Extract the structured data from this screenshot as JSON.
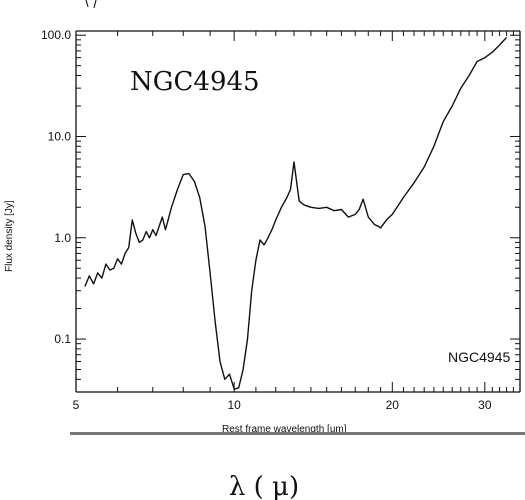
{
  "chart_data": {
    "type": "line",
    "title": "NGC4945",
    "inset_label": "NGC4945",
    "xlabel": "Rest frame wavelength [um]",
    "ylabel": "Flux density [Jy]",
    "caption": "λ ( μ)",
    "x_scale": "log",
    "y_scale": "log",
    "xlim": [
      5,
      35
    ],
    "ylim": [
      0.03,
      110
    ],
    "x_ticks": [
      5,
      10,
      20,
      30
    ],
    "x_tick_labels": [
      "5",
      "10",
      "20",
      "30"
    ],
    "y_ticks": [
      0.1,
      1,
      10,
      100
    ],
    "y_tick_labels": [
      "0.1",
      "1.0",
      "10.0",
      "100.0"
    ],
    "grid": false,
    "series": [
      {
        "x": [
          5.2,
          5.3,
          5.4,
          5.5,
          5.6,
          5.7,
          5.8,
          5.9,
          6.0,
          6.1,
          6.2,
          6.3,
          6.4,
          6.5,
          6.6,
          6.7,
          6.8,
          6.9,
          7.0,
          7.1,
          7.2,
          7.3,
          7.4,
          7.6,
          7.8,
          8.0,
          8.2,
          8.4,
          8.6,
          8.8,
          9.0,
          9.2,
          9.4,
          9.6,
          9.8,
          10.0,
          10.2,
          10.4,
          10.6,
          10.8,
          11.0,
          11.2,
          11.4,
          11.6,
          11.8,
          12.0,
          12.3,
          12.6,
          12.8,
          13.0,
          13.3,
          13.6,
          14.0,
          14.5,
          15.0,
          15.5,
          16.0,
          16.5,
          17.0,
          17.3,
          17.6,
          18.0,
          18.5,
          18.8,
          19.0,
          19.5,
          20.0,
          21.0,
          22.0,
          23.0,
          24.0,
          25.0,
          26.0,
          27.0,
          28.0,
          29.0,
          30.0,
          31.0,
          32.0,
          33.0
        ],
        "y": [
          0.33,
          0.42,
          0.35,
          0.45,
          0.4,
          0.55,
          0.48,
          0.5,
          0.62,
          0.55,
          0.7,
          0.8,
          1.5,
          1.1,
          0.9,
          0.95,
          1.15,
          1.0,
          1.2,
          1.05,
          1.3,
          1.6,
          1.2,
          2.0,
          3.0,
          4.2,
          4.3,
          3.6,
          2.5,
          1.3,
          0.45,
          0.15,
          0.06,
          0.04,
          0.045,
          0.032,
          0.033,
          0.05,
          0.1,
          0.3,
          0.6,
          0.95,
          0.85,
          1.0,
          1.2,
          1.5,
          2.0,
          2.5,
          3.0,
          5.6,
          2.3,
          2.1,
          2.0,
          1.95,
          2.0,
          1.85,
          1.9,
          1.6,
          1.7,
          1.9,
          2.4,
          1.6,
          1.35,
          1.3,
          1.25,
          1.5,
          1.7,
          2.5,
          3.5,
          5.0,
          8.0,
          14.0,
          20.0,
          30.0,
          40.0,
          55.0,
          60.0,
          68.0,
          80.0,
          95.0
        ]
      }
    ]
  }
}
